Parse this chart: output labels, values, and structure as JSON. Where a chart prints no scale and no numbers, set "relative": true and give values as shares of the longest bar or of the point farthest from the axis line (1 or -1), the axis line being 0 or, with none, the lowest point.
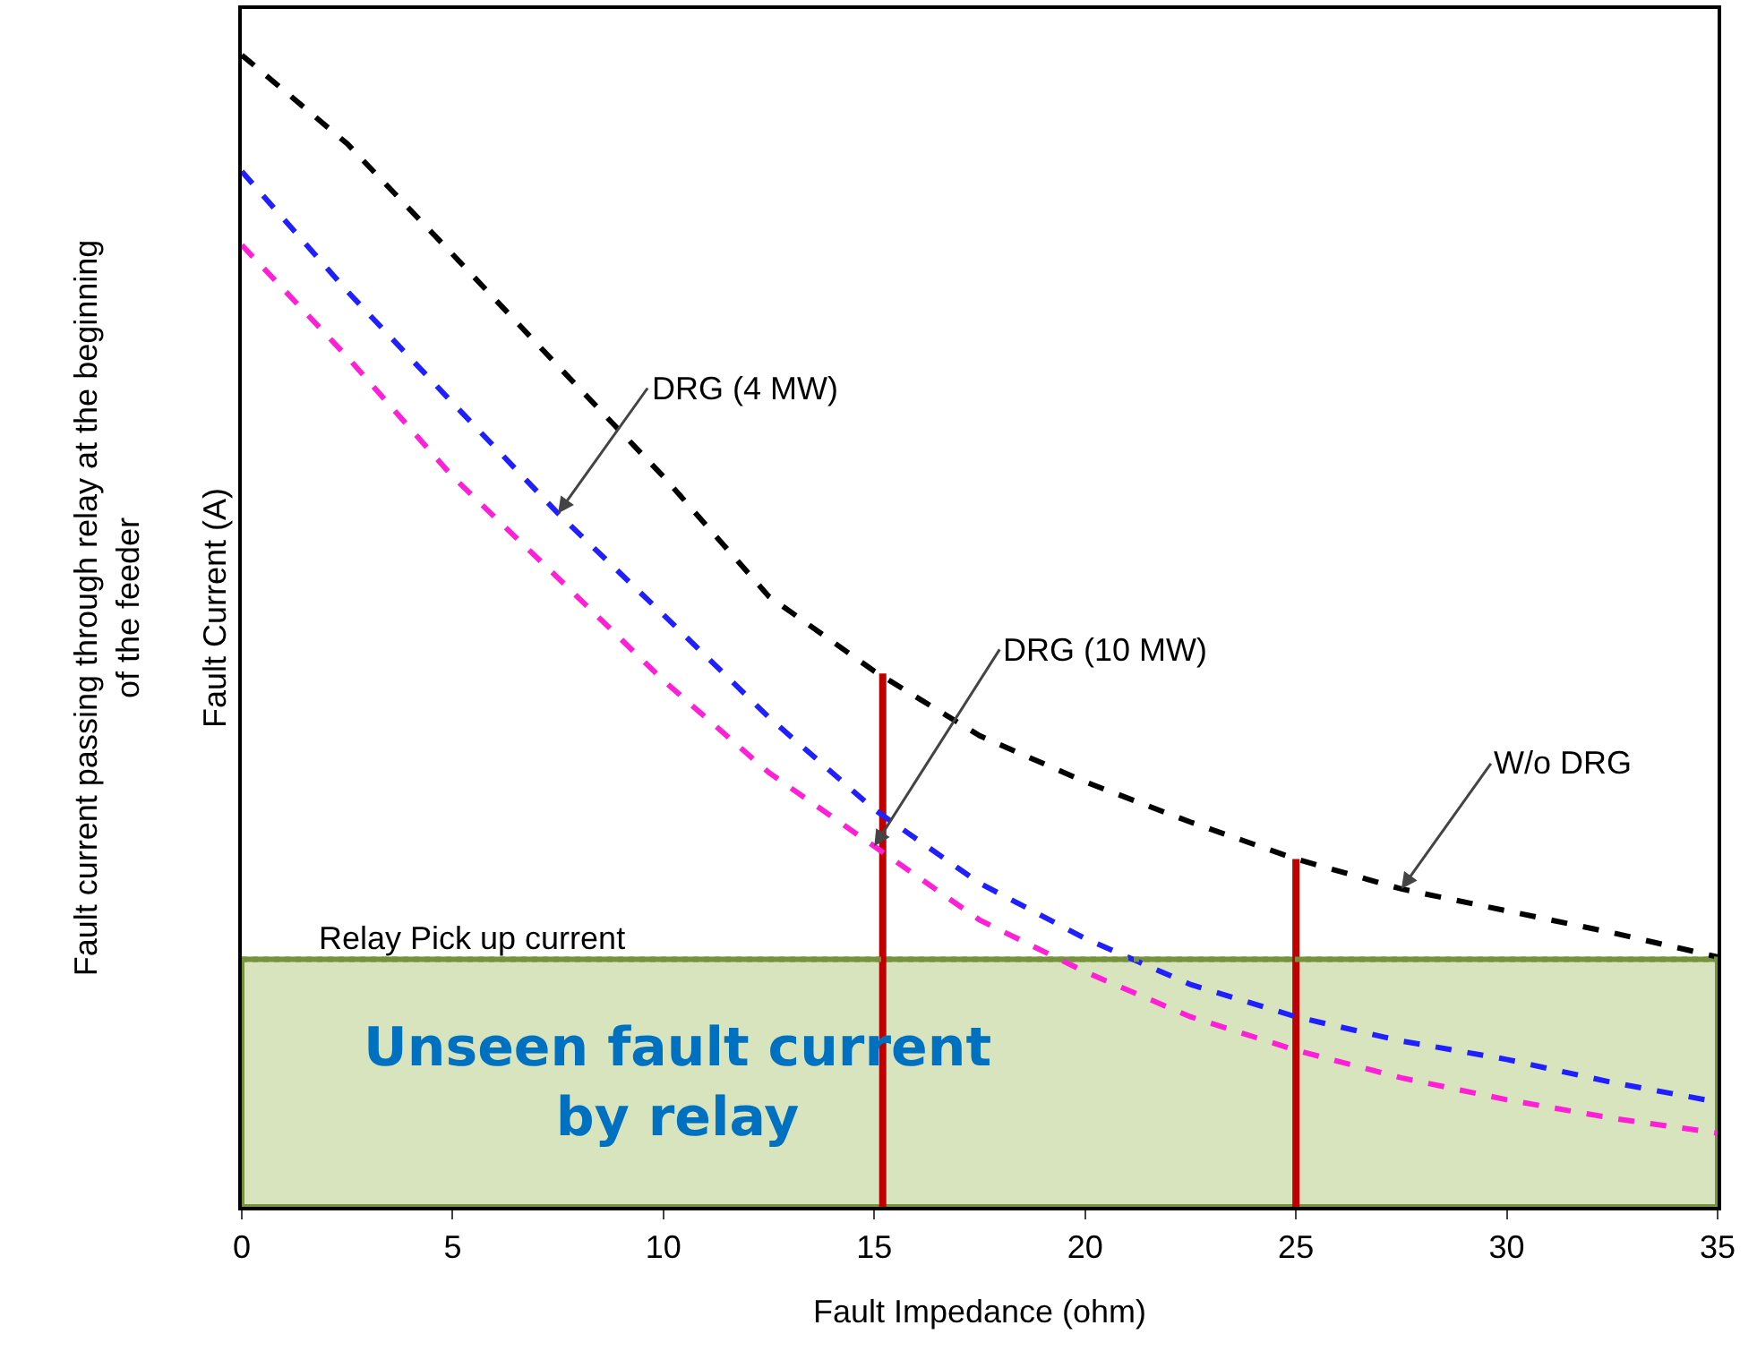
{
  "chart_data": {
    "type": "line",
    "xlabel": "Fault Impedance (ohm)",
    "ylabel": "Fault Current (A)",
    "relative": true,
    "x": [
      0,
      2.5,
      5,
      7.5,
      10,
      12.5,
      15,
      17.5,
      20,
      22.5,
      25,
      27.5,
      30,
      32.5,
      35
    ],
    "xlim": [
      0,
      35
    ],
    "xticks": [
      0,
      5,
      10,
      15,
      20,
      25,
      30,
      35
    ],
    "grid": false,
    "marker": "none",
    "line_style": "dashed",
    "series": [
      {
        "color": "#000000",
        "values": [
          1,
          0.923,
          0.827,
          0.73,
          0.634,
          0.53,
          0.465,
          0.409,
          0.369,
          0.334,
          0.302,
          0.276,
          0.257,
          0.238,
          0.217
        ]
      },
      {
        "color": "#1f1fff",
        "values": [
          0.899,
          0.795,
          0.698,
          0.602,
          0.514,
          0.425,
          0.345,
          0.281,
          0.233,
          0.193,
          0.165,
          0.144,
          0.128,
          0.108,
          0.091
        ]
      },
      {
        "color": "#ff1fd6",
        "values": [
          0.835,
          0.738,
          0.634,
          0.546,
          0.457,
          0.377,
          0.313,
          0.249,
          0.204,
          0.165,
          0.136,
          0.112,
          0.093,
          0.077,
          0.064
        ]
      },
      {
        "type": "bar",
        "color": "#c00000",
        "x": [
          15.2,
          25
        ],
        "values": [
          0.463,
          0.302
        ]
      }
    ],
    "bands": [
      {
        "axis": "y",
        "from": 0,
        "to": 0.215,
        "label": "Unseen fault current by relay",
        "color": "#d7e4bd"
      }
    ],
    "ref_lines": [
      {
        "axis": "y",
        "value": 0.215,
        "label": "Relay Pick up current",
        "color": "#76923c",
        "line_style": "dotted"
      }
    ],
    "annotations": [
      {
        "text": "DRG (4 MW)",
        "x": 7.5,
        "y": 0.602
      },
      {
        "text": "DRG (10 MW)",
        "x": 15,
        "y": 0.313
      },
      {
        "text": "W/o DRG",
        "x": 27.5,
        "y": 0.276
      },
      "Fault current passing through relay at the beginning of the feeder"
    ]
  }
}
